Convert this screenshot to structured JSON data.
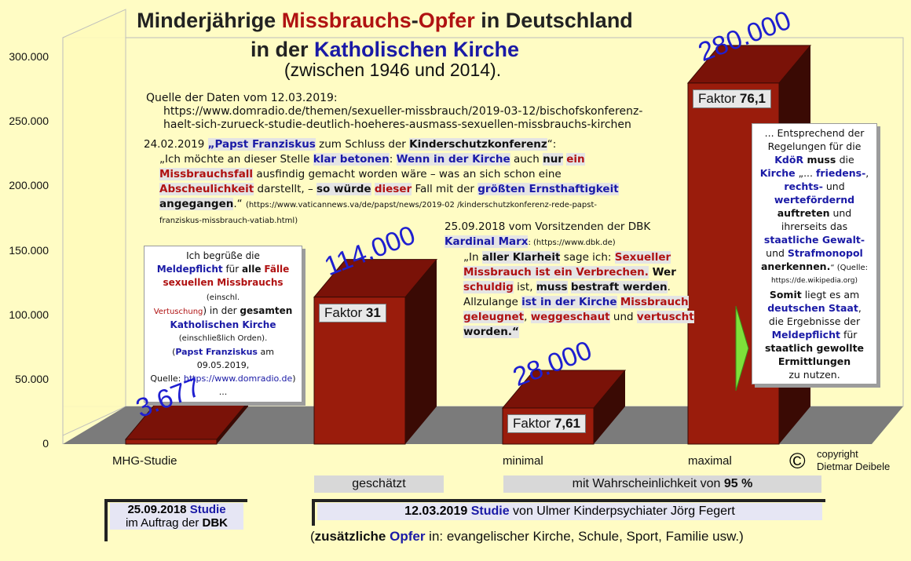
{
  "title": {
    "line1_a": "Minderjährige ",
    "line1_b": "Missbrauchs",
    "line1_c": "-",
    "line1_d": "Opfer",
    "line1_e": " in Deutschland",
    "line2_a": "in der ",
    "line2_b": "Katholischen Kirche",
    "subtitle": "(zwischen 1946 und 2014)."
  },
  "source": {
    "line1": "Quelle der Daten vom 12.03.2019:",
    "line2": "https://www.domradio.de/themen/sexueller-missbrauch/2019-03-12/bischofskonferenz-",
    "line3": "haelt-sich-zurueck-studie-deutlich-hoeheres-ausmass-sexuellen-missbrauchs-kirchen"
  },
  "pope_quote": {
    "date": "24.02.2019 ",
    "name": "„Papst Franziskus",
    "mid": " zum Schluss der ",
    "event": "Kinderschutzkonferenz",
    "end": "“:",
    "q1": "„Ich möchte an dieser Stelle ",
    "q2": "klar betonen",
    "q3": ": ",
    "q4": "Wenn in der Kirche",
    "q5": " auch ",
    "q6": "nur",
    "q7": " ",
    "q8": "ein",
    "q9": "Missbrauchsfall",
    "q10": " ausfindig gemacht worden wäre – was an sich schon eine",
    "q11": "Abscheulichkeit",
    "q12": " darstellt, – ",
    "q13": "so würde",
    "q14": " ",
    "q15": "dieser",
    "q16": " Fall mit der ",
    "q17": "größten Ernsthaftigkeit",
    "q18": "angegangen",
    "q19": ".“ ",
    "url1": "(https://www.vaticannews.va/de/papst/news/2019-02 /kinderschutzkonferenz-rede-papst-",
    "url2": "franziskus-missbrauch-vatiab.html)"
  },
  "marx_quote": {
    "line1": "25.09.2018 vom Vorsitzenden der DBK",
    "name": "Kardinal Marx",
    "url": ": (https://www.dbk.de)",
    "q1": "„In ",
    "q2": "aller Klarheit",
    "q3": " sage ich: ",
    "q4": "Sexueller",
    "q5": "Missbrauch ist ein Verbrechen.",
    "q6": " Wer",
    "q7": "schuldig",
    "q8": " ist, ",
    "q9": "muss",
    "q10": " ",
    "q11": "bestraft werden",
    "q12": ".",
    "q13": "Allzulange ",
    "q14": "ist in der Kirche",
    "q15": " ",
    "q16": "Missbrauch",
    "q17": "geleugnet",
    "q18": ", ",
    "q19": "weggeschaut",
    "q20": " und ",
    "q21": "vertuscht",
    "q22": "worden.“"
  },
  "left_box": {
    "l1": "Ich begrüße die",
    "l2a": "Meldepflicht",
    "l2b": " für ",
    "l2c": "alle",
    "l2d": " ",
    "l2e": "Fälle",
    "l3a": "sexuellen Missbrauchs",
    "l3b": " (einschl.",
    "l4a": "Vertuschung",
    "l4b": ") in der ",
    "l4c": "gesamten",
    "l5": "Katholischen Kirche",
    "l6": "(einschließlich Orden).",
    "l7a": "(",
    "l7b": "Papst Franziskus",
    "l7c": " am 09.05.2019,",
    "l8a": "Quelle: ",
    "l8b": "https://www.domradio.de",
    "l8c": ") ..."
  },
  "right_box": {
    "l1": "... Entsprechend der",
    "l2": "Regelungen für die",
    "l3a": "KdöR",
    "l3b": " muss ",
    "l3c": "die",
    "l4a": "Kirche",
    "l4b": " „... ",
    "l4c": "friedens-",
    "l4d": ",",
    "l5a": "rechts-",
    "l5b": " und",
    "l6": "wertefördernd",
    "l7a": "auftreten",
    "l7b": " und",
    "l8": "ihrerseits das",
    "l9": "staatliche Gewalt-",
    "l10a": "und ",
    "l10b": "Strafmonopol",
    "l11a": "anerkennen.",
    "l11b": "“ (Quelle:",
    "l12": "https://de.wikipedia.org)",
    "l13a": "Somit",
    "l13b": " liegt es am",
    "l14": "deutschen Staat",
    "l14b": ",",
    "l15": "die Ergebnisse der",
    "l16a": "Meldepflicht",
    "l16b": " für",
    "l17a": "staatlich ",
    "l17b": "gewollte",
    "l18": "Ermittlungen",
    "l19": "zu nutzen."
  },
  "chart_data": {
    "type": "bar",
    "categories": [
      "MHG-Studie",
      "geschätzt",
      "minimal",
      "maximal"
    ],
    "values": [
      3677,
      114000,
      28000,
      280000
    ],
    "value_labels": [
      "3.677",
      "114.000",
      "28.000",
      "280.000"
    ],
    "factor_prefix": "Faktor ",
    "factors": [
      "",
      "31",
      "7,61",
      "76,1"
    ],
    "y_ticks": [
      "0",
      "50.000",
      "100.000",
      "150.000",
      "200.000",
      "250.000",
      "300.000"
    ],
    "ylim": [
      0,
      300000
    ],
    "bar_color": "#9a1c0c",
    "bar_edge_color": "#3a0a04",
    "bar_top_color": "#7a1208",
    "grid": false
  },
  "x_labels": {
    "mhg": "MHG-Studie",
    "minimal": "minimal",
    "maximal": "maximal"
  },
  "bands": {
    "estimated": "geschätzt",
    "probability_a": "mit Wahrscheinlichkeit von ",
    "probability_b": "95 %"
  },
  "copyright": {
    "symbol": "©",
    "line1": "copyright",
    "line2": "Dietmar Deibele"
  },
  "footer": {
    "study1_date": "25.09.2018 ",
    "study1_word": "Studie",
    "study1_line2a": "im Auftrag der ",
    "study1_line2b": "DBK",
    "study2_date": "12.03.2019 ",
    "study2_word": "Studie",
    "study2_rest": " von Ulmer Kinderpsychiater Jörg Fegert",
    "extra_a": "(",
    "extra_b": "zusätzliche",
    "extra_c": " ",
    "extra_d": "Opfer",
    "extra_e": " in: evangelischer Kirche, Schule, Sport, Familie usw.)"
  }
}
